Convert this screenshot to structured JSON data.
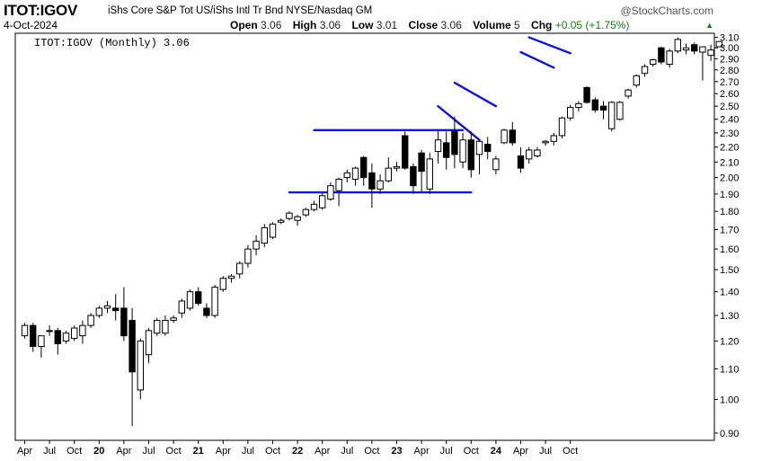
{
  "header": {
    "symbol": "ITOT:IGOV",
    "description": "iShs Core S&P Tot US/iShs Intl Tr Bnd NYSE/Nasdaq GM",
    "brand": "@StockCharts.com",
    "date": "4-Oct-2024",
    "open_label": "Open",
    "open": "3.06",
    "high_label": "High",
    "high": "3.06",
    "low_label": "Low",
    "low": "3.01",
    "close_label": "Close",
    "close": "3.06",
    "volume_label": "Volume",
    "volume": "5",
    "chg_label": "Chg",
    "chg": "+0.05 (+1.75%)",
    "arrow": "▲"
  },
  "chart_data": {
    "type": "candlestick",
    "legend": "ITOT:IGOV (Monthly) 3.06",
    "legend_placement": "top-left",
    "period": "Monthly",
    "y_scale": "log",
    "ylim": [
      0.88,
      3.14
    ],
    "y_ticks": [
      "3.10",
      "3.00",
      "2.90",
      "2.80",
      "2.70",
      "2.60",
      "2.50",
      "2.40",
      "2.30",
      "2.20",
      "2.10",
      "2.00",
      "1.90",
      "1.80",
      "1.70",
      "1.60",
      "1.50",
      "1.40",
      "1.30",
      "1.20",
      "1.10",
      "1.00",
      "0.90"
    ],
    "x_ticks": [
      "Apr",
      "Jul",
      "Oct",
      "20",
      "Apr",
      "Jul",
      "Oct",
      "21",
      "Apr",
      "Jul",
      "Oct",
      "22",
      "Apr",
      "Jul",
      "Oct",
      "23",
      "Apr",
      "Jul",
      "Oct",
      "24",
      "Apr",
      "Jul",
      "Oct"
    ],
    "x_start": "2019-04",
    "up_color": "#ffffff",
    "down_color": "#000000",
    "trendline_color": "#1414c8",
    "candles": [
      {
        "o": 1.22,
        "h": 1.27,
        "l": 1.21,
        "c": 1.26
      },
      {
        "o": 1.26,
        "h": 1.27,
        "l": 1.16,
        "c": 1.18
      },
      {
        "o": 1.18,
        "h": 1.22,
        "l": 1.14,
        "c": 1.22
      },
      {
        "o": 1.24,
        "h": 1.26,
        "l": 1.22,
        "c": 1.24
      },
      {
        "o": 1.24,
        "h": 1.25,
        "l": 1.15,
        "c": 1.19
      },
      {
        "o": 1.2,
        "h": 1.24,
        "l": 1.19,
        "c": 1.23
      },
      {
        "o": 1.21,
        "h": 1.26,
        "l": 1.2,
        "c": 1.25
      },
      {
        "o": 1.22,
        "h": 1.28,
        "l": 1.19,
        "c": 1.26
      },
      {
        "o": 1.26,
        "h": 1.31,
        "l": 1.25,
        "c": 1.3
      },
      {
        "o": 1.3,
        "h": 1.34,
        "l": 1.29,
        "c": 1.33
      },
      {
        "o": 1.33,
        "h": 1.36,
        "l": 1.31,
        "c": 1.34
      },
      {
        "o": 1.33,
        "h": 1.39,
        "l": 1.28,
        "c": 1.32
      },
      {
        "o": 1.33,
        "h": 1.42,
        "l": 1.2,
        "c": 1.22
      },
      {
        "o": 1.28,
        "h": 1.33,
        "l": 0.92,
        "c": 1.09
      },
      {
        "o": 1.03,
        "h": 1.21,
        "l": 1.0,
        "c": 1.2
      },
      {
        "o": 1.15,
        "h": 1.25,
        "l": 1.12,
        "c": 1.24
      },
      {
        "o": 1.23,
        "h": 1.29,
        "l": 1.22,
        "c": 1.28
      },
      {
        "o": 1.23,
        "h": 1.3,
        "l": 1.22,
        "c": 1.28
      },
      {
        "o": 1.28,
        "h": 1.3,
        "l": 1.27,
        "c": 1.29
      },
      {
        "o": 1.31,
        "h": 1.37,
        "l": 1.29,
        "c": 1.36
      },
      {
        "o": 1.33,
        "h": 1.41,
        "l": 1.32,
        "c": 1.4
      },
      {
        "o": 1.4,
        "h": 1.42,
        "l": 1.34,
        "c": 1.35
      },
      {
        "o": 1.33,
        "h": 1.35,
        "l": 1.29,
        "c": 1.3
      },
      {
        "o": 1.3,
        "h": 1.43,
        "l": 1.29,
        "c": 1.42
      },
      {
        "o": 1.41,
        "h": 1.47,
        "l": 1.4,
        "c": 1.46
      },
      {
        "o": 1.46,
        "h": 1.48,
        "l": 1.44,
        "c": 1.47
      },
      {
        "o": 1.48,
        "h": 1.54,
        "l": 1.46,
        "c": 1.53
      },
      {
        "o": 1.53,
        "h": 1.62,
        "l": 1.51,
        "c": 1.6
      },
      {
        "o": 1.6,
        "h": 1.67,
        "l": 1.57,
        "c": 1.64
      },
      {
        "o": 1.63,
        "h": 1.73,
        "l": 1.61,
        "c": 1.71
      },
      {
        "o": 1.66,
        "h": 1.74,
        "l": 1.65,
        "c": 1.73
      },
      {
        "o": 1.74,
        "h": 1.76,
        "l": 1.73,
        "c": 1.75
      },
      {
        "o": 1.76,
        "h": 1.8,
        "l": 1.75,
        "c": 1.79
      },
      {
        "o": 1.75,
        "h": 1.78,
        "l": 1.72,
        "c": 1.77
      },
      {
        "o": 1.78,
        "h": 1.82,
        "l": 1.77,
        "c": 1.81
      },
      {
        "o": 1.81,
        "h": 1.86,
        "l": 1.8,
        "c": 1.84
      },
      {
        "o": 1.82,
        "h": 1.91,
        "l": 1.81,
        "c": 1.89
      },
      {
        "o": 1.87,
        "h": 1.97,
        "l": 1.86,
        "c": 1.95
      },
      {
        "o": 1.92,
        "h": 2.0,
        "l": 1.83,
        "c": 1.99
      },
      {
        "o": 2.0,
        "h": 2.05,
        "l": 1.97,
        "c": 2.03
      },
      {
        "o": 1.99,
        "h": 2.07,
        "l": 1.95,
        "c": 2.06
      },
      {
        "o": 2.13,
        "h": 2.14,
        "l": 1.95,
        "c": 2.0
      },
      {
        "o": 2.03,
        "h": 2.09,
        "l": 1.82,
        "c": 1.93
      },
      {
        "o": 1.93,
        "h": 2.02,
        "l": 1.9,
        "c": 1.98
      },
      {
        "o": 1.98,
        "h": 2.13,
        "l": 1.97,
        "c": 2.06
      },
      {
        "o": 2.06,
        "h": 2.1,
        "l": 2.04,
        "c": 2.07
      },
      {
        "o": 2.28,
        "h": 2.31,
        "l": 2.05,
        "c": 2.06
      },
      {
        "o": 2.07,
        "h": 2.09,
        "l": 1.9,
        "c": 1.95
      },
      {
        "o": 2.16,
        "h": 2.18,
        "l": 1.91,
        "c": 2.04
      },
      {
        "o": 1.93,
        "h": 2.16,
        "l": 1.9,
        "c": 2.12
      },
      {
        "o": 2.17,
        "h": 2.32,
        "l": 2.09,
        "c": 2.25
      },
      {
        "o": 2.23,
        "h": 2.31,
        "l": 2.05,
        "c": 2.13
      },
      {
        "o": 2.31,
        "h": 2.42,
        "l": 2.06,
        "c": 2.15
      },
      {
        "o": 2.1,
        "h": 2.3,
        "l": 2.06,
        "c": 2.25
      },
      {
        "o": 2.25,
        "h": 2.31,
        "l": 2.0,
        "c": 2.05
      },
      {
        "o": 2.15,
        "h": 2.25,
        "l": 2.02,
        "c": 2.24
      },
      {
        "o": 2.22,
        "h": 2.27,
        "l": 2.12,
        "c": 2.17
      },
      {
        "o": 2.05,
        "h": 2.14,
        "l": 2.02,
        "c": 2.12
      },
      {
        "o": 2.23,
        "h": 2.33,
        "l": 2.22,
        "c": 2.32
      },
      {
        "o": 2.32,
        "h": 2.38,
        "l": 2.21,
        "c": 2.23
      },
      {
        "o": 2.14,
        "h": 2.2,
        "l": 2.03,
        "c": 2.06
      },
      {
        "o": 2.12,
        "h": 2.2,
        "l": 2.09,
        "c": 2.18
      },
      {
        "o": 2.14,
        "h": 2.2,
        "l": 2.13,
        "c": 2.18
      },
      {
        "o": 2.23,
        "h": 2.25,
        "l": 2.21,
        "c": 2.24
      },
      {
        "o": 2.24,
        "h": 2.3,
        "l": 2.21,
        "c": 2.28
      },
      {
        "o": 2.28,
        "h": 2.42,
        "l": 2.26,
        "c": 2.41
      },
      {
        "o": 2.41,
        "h": 2.51,
        "l": 2.39,
        "c": 2.49
      },
      {
        "o": 2.49,
        "h": 2.54,
        "l": 2.46,
        "c": 2.52
      },
      {
        "o": 2.65,
        "h": 2.66,
        "l": 2.52,
        "c": 2.53
      },
      {
        "o": 2.55,
        "h": 2.57,
        "l": 2.45,
        "c": 2.47
      },
      {
        "o": 2.5,
        "h": 2.54,
        "l": 2.4,
        "c": 2.47
      },
      {
        "o": 2.33,
        "h": 2.54,
        "l": 2.31,
        "c": 2.53
      },
      {
        "o": 2.4,
        "h": 2.54,
        "l": 2.39,
        "c": 2.53
      },
      {
        "o": 2.58,
        "h": 2.64,
        "l": 2.56,
        "c": 2.63
      },
      {
        "o": 2.67,
        "h": 2.76,
        "l": 2.65,
        "c": 2.75
      },
      {
        "o": 2.77,
        "h": 2.85,
        "l": 2.74,
        "c": 2.83
      },
      {
        "o": 2.85,
        "h": 2.9,
        "l": 2.83,
        "c": 2.89
      },
      {
        "o": 3.0,
        "h": 3.01,
        "l": 2.85,
        "c": 2.87
      },
      {
        "o": 2.85,
        "h": 2.99,
        "l": 2.82,
        "c": 2.97
      },
      {
        "o": 2.97,
        "h": 3.1,
        "l": 2.95,
        "c": 3.08
      },
      {
        "o": 2.98,
        "h": 3.04,
        "l": 2.94,
        "c": 3.0
      },
      {
        "o": 3.03,
        "h": 3.05,
        "l": 2.94,
        "c": 2.97
      },
      {
        "o": 2.96,
        "h": 3.0,
        "l": 2.71,
        "c": 3.01
      },
      {
        "o": 2.93,
        "h": 3.03,
        "l": 2.88,
        "c": 2.98
      },
      {
        "o": 3.01,
        "h": 3.06,
        "l": 3.01,
        "c": 3.06
      }
    ],
    "trendlines": [
      {
        "from": {
          "t": "2022-03",
          "v": 2.32
        },
        "to": {
          "t": "2023-09",
          "v": 2.32
        }
      },
      {
        "from": {
          "t": "2021-12",
          "v": 1.91
        },
        "to": {
          "t": "2023-10",
          "v": 1.91
        }
      },
      {
        "from": {
          "t": "2023-06",
          "v": 2.5
        },
        "to": {
          "t": "2023-11",
          "v": 2.25
        }
      },
      {
        "from": {
          "t": "2023-08",
          "v": 2.69
        },
        "to": {
          "t": "2024-01",
          "v": 2.5
        }
      },
      {
        "from": {
          "t": "2024-04",
          "v": 2.96
        },
        "to": {
          "t": "2024-08",
          "v": 2.82
        }
      },
      {
        "from": {
          "t": "2024-05",
          "v": 3.1
        },
        "to": {
          "t": "2024-10",
          "v": 2.95
        }
      }
    ]
  }
}
